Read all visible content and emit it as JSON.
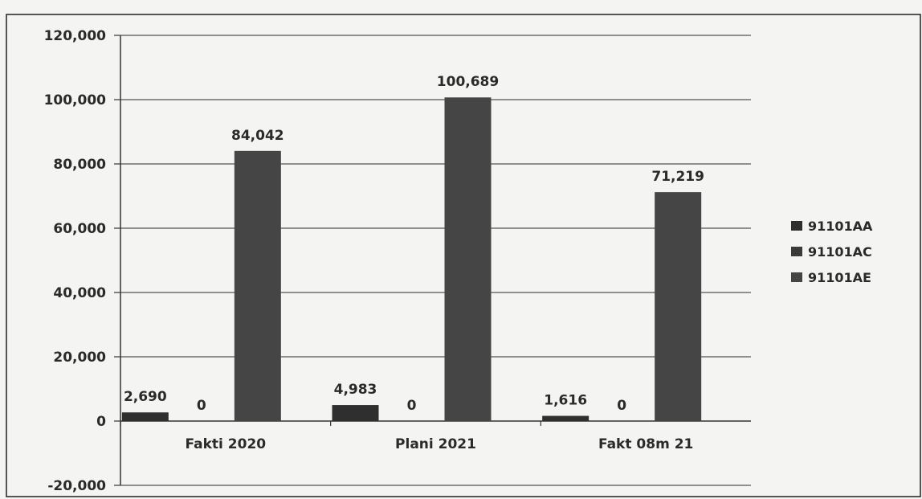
{
  "chart_data": {
    "type": "bar",
    "categories": [
      "Fakti 2020",
      "Plani 2021",
      "Fakt 08m 21"
    ],
    "series": [
      {
        "name": "91101AA",
        "values": [
          2690,
          4983,
          1616
        ],
        "labels": [
          "2,690",
          "4,983",
          "1,616"
        ],
        "color": "#2f2f2f"
      },
      {
        "name": "91101AC",
        "values": [
          0,
          0,
          0
        ],
        "labels": [
          "0",
          "0",
          "0"
        ],
        "color": "#3a3a3a"
      },
      {
        "name": "91101AE",
        "values": [
          84042,
          100689,
          71219
        ],
        "labels": [
          "84,042",
          "100,689",
          "71,219"
        ],
        "color": "#454545"
      }
    ],
    "yticks": [
      "120,000",
      "100,000",
      "80,000",
      "60,000",
      "40,000",
      "20,000",
      "0",
      "-20,000"
    ],
    "ytick_values": [
      120000,
      100000,
      80000,
      60000,
      40000,
      20000,
      0,
      -20000
    ],
    "ylim": [
      -20000,
      120000
    ],
    "grid": true,
    "legend_position": "right",
    "title": "",
    "xlabel": "",
    "ylabel": ""
  }
}
